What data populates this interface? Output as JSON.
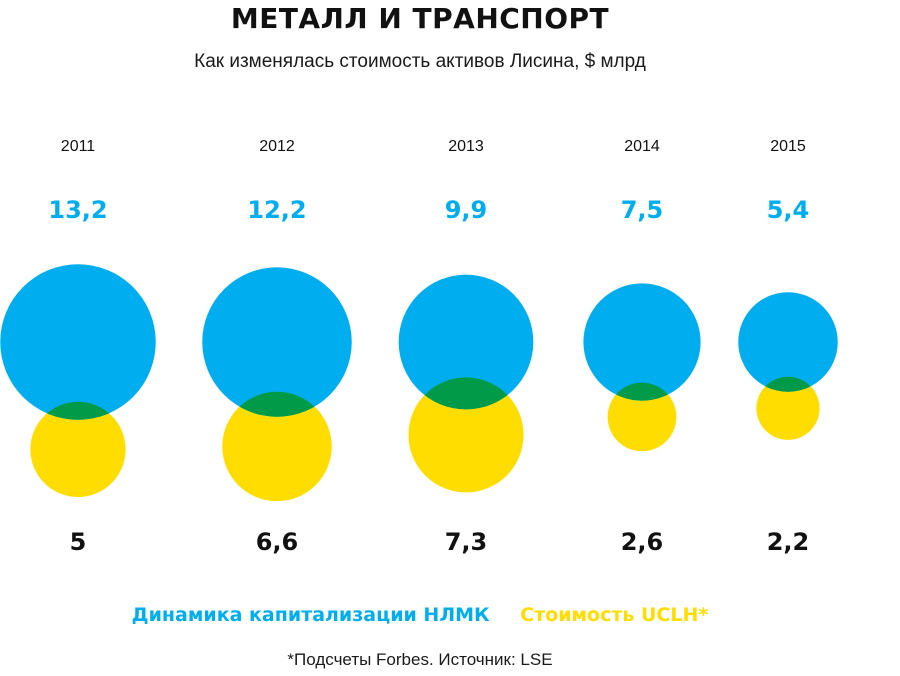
{
  "title": "МЕТАЛЛ И ТРАНСПОРТ",
  "subtitle": "Как изменялась стоимость активов Лисина, $ млрд",
  "legend": {
    "nlmk": "Динамика капитализации НЛМК",
    "uclh": "Стоимость UCLH*"
  },
  "footnote": "*Подсчеты Forbes. Источник: LSE",
  "colors": {
    "nlmk": "#00aeef",
    "uclh": "#ffdd00",
    "overlap": "#009a49",
    "value_labels_blue": "#00aeef",
    "value_labels_black": "#111111"
  },
  "chart_data": {
    "type": "bubble",
    "categories": [
      "2011",
      "2012",
      "2013",
      "2014",
      "2015"
    ],
    "series": [
      {
        "name": "Динамика капитализации НЛМК",
        "values": [
          13.2,
          12.2,
          9.9,
          7.5,
          5.4
        ],
        "labels": [
          "13,2",
          "12,2",
          "9,9",
          "7,5",
          "5,4"
        ]
      },
      {
        "name": "Стоимость UCLH*",
        "values": [
          5,
          6.6,
          7.3,
          2.6,
          2.2
        ],
        "labels": [
          "5",
          "6,6",
          "7,3",
          "2,6",
          "2,2"
        ]
      }
    ]
  }
}
